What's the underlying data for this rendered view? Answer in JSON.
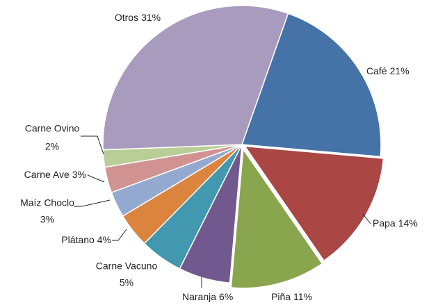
{
  "chart_data": {
    "type": "pie",
    "categories": [
      "Café",
      "Papa",
      "Piña",
      "Naranja",
      "Carne Vacuno",
      "Plátano",
      "Maíz Choclo",
      "Carne Ave",
      "Carne Ovino",
      "Otros"
    ],
    "values": [
      21,
      14,
      11,
      6,
      5,
      4,
      3,
      3,
      2,
      31
    ],
    "value_labels": [
      "21%",
      "14%",
      "11%",
      "6%",
      "5%",
      "4%",
      "3%",
      "3%",
      "2%",
      "31%"
    ],
    "colors": [
      "#4572a7",
      "#aa4643",
      "#89a54e",
      "#71588f",
      "#4198af",
      "#db843d",
      "#93a9cf",
      "#d19392",
      "#b9cd96",
      "#a99bbd"
    ]
  }
}
